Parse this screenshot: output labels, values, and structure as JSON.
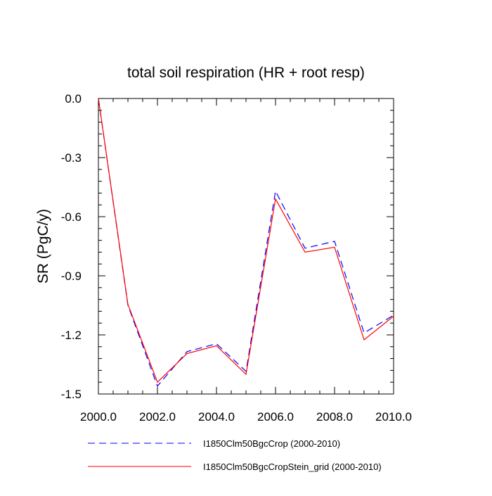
{
  "chart_data": {
    "type": "line",
    "title": "total soil respiration (HR + root resp)",
    "ylabel": "SR  (PgC/y)",
    "xlabel": "",
    "xlim": [
      2000,
      2010
    ],
    "ylim": [
      -1.5,
      0.0
    ],
    "x_ticks": [
      "2000.0",
      "2002.0",
      "2004.0",
      "2006.0",
      "2008.0",
      "2010.0"
    ],
    "y_ticks": [
      "0.0",
      "-0.3",
      "-0.6",
      "-0.9",
      "-1.2",
      "-1.5"
    ],
    "x": [
      2000,
      2001,
      2002,
      2003,
      2004,
      2005,
      2006,
      2007,
      2008,
      2009,
      2010
    ],
    "series": [
      {
        "name": "I1850Clm50BgcCrop (2000-2010)",
        "color": "#0000ff",
        "dash": true,
        "values": [
          0.0,
          -1.05,
          -1.46,
          -1.285,
          -1.245,
          -1.385,
          -0.47,
          -0.76,
          -0.725,
          -1.19,
          -1.1
        ]
      },
      {
        "name": "I1850Clm50BgcCropStein_grid (2000-2010)",
        "color": "#ff0000",
        "dash": false,
        "values": [
          0.0,
          -1.045,
          -1.44,
          -1.295,
          -1.255,
          -1.4,
          -0.51,
          -0.78,
          -0.755,
          -1.225,
          -1.105
        ]
      }
    ],
    "grid": false,
    "legend_position": "bottom"
  }
}
